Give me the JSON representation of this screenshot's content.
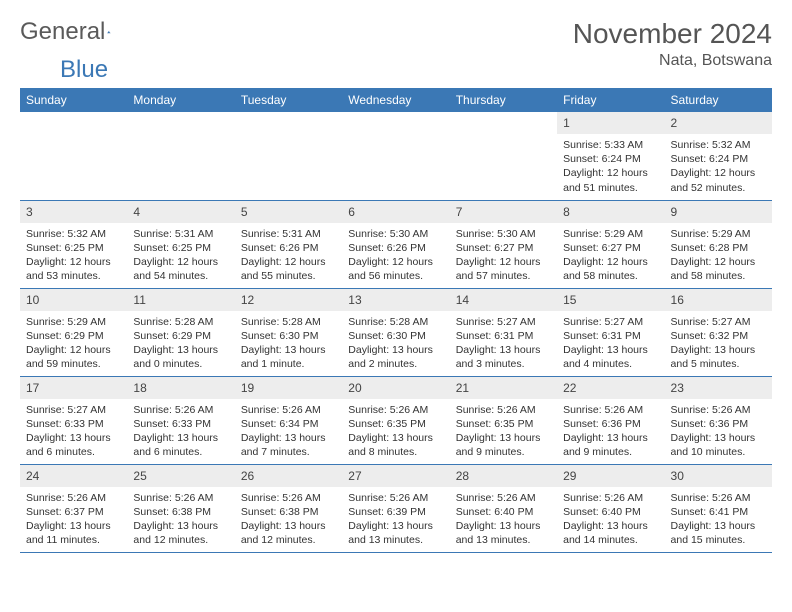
{
  "brand": {
    "text1": "General",
    "text2": "Blue",
    "color1": "#5a5a5a",
    "color2": "#3b78b5"
  },
  "title": "November 2024",
  "location": "Nata, Botswana",
  "colors": {
    "header_bg": "#3b78b5",
    "header_text": "#ffffff",
    "daynum_bg": "#ededed",
    "border": "#3b78b5",
    "body_text": "#333333"
  },
  "day_headers": [
    "Sunday",
    "Monday",
    "Tuesday",
    "Wednesday",
    "Thursday",
    "Friday",
    "Saturday"
  ],
  "grid": [
    [
      null,
      null,
      null,
      null,
      null,
      {
        "n": "1",
        "sunrise": "5:33 AM",
        "sunset": "6:24 PM",
        "daylight": "12 hours and 51 minutes."
      },
      {
        "n": "2",
        "sunrise": "5:32 AM",
        "sunset": "6:24 PM",
        "daylight": "12 hours and 52 minutes."
      }
    ],
    [
      {
        "n": "3",
        "sunrise": "5:32 AM",
        "sunset": "6:25 PM",
        "daylight": "12 hours and 53 minutes."
      },
      {
        "n": "4",
        "sunrise": "5:31 AM",
        "sunset": "6:25 PM",
        "daylight": "12 hours and 54 minutes."
      },
      {
        "n": "5",
        "sunrise": "5:31 AM",
        "sunset": "6:26 PM",
        "daylight": "12 hours and 55 minutes."
      },
      {
        "n": "6",
        "sunrise": "5:30 AM",
        "sunset": "6:26 PM",
        "daylight": "12 hours and 56 minutes."
      },
      {
        "n": "7",
        "sunrise": "5:30 AM",
        "sunset": "6:27 PM",
        "daylight": "12 hours and 57 minutes."
      },
      {
        "n": "8",
        "sunrise": "5:29 AM",
        "sunset": "6:27 PM",
        "daylight": "12 hours and 58 minutes."
      },
      {
        "n": "9",
        "sunrise": "5:29 AM",
        "sunset": "6:28 PM",
        "daylight": "12 hours and 58 minutes."
      }
    ],
    [
      {
        "n": "10",
        "sunrise": "5:29 AM",
        "sunset": "6:29 PM",
        "daylight": "12 hours and 59 minutes."
      },
      {
        "n": "11",
        "sunrise": "5:28 AM",
        "sunset": "6:29 PM",
        "daylight": "13 hours and 0 minutes."
      },
      {
        "n": "12",
        "sunrise": "5:28 AM",
        "sunset": "6:30 PM",
        "daylight": "13 hours and 1 minute."
      },
      {
        "n": "13",
        "sunrise": "5:28 AM",
        "sunset": "6:30 PM",
        "daylight": "13 hours and 2 minutes."
      },
      {
        "n": "14",
        "sunrise": "5:27 AM",
        "sunset": "6:31 PM",
        "daylight": "13 hours and 3 minutes."
      },
      {
        "n": "15",
        "sunrise": "5:27 AM",
        "sunset": "6:31 PM",
        "daylight": "13 hours and 4 minutes."
      },
      {
        "n": "16",
        "sunrise": "5:27 AM",
        "sunset": "6:32 PM",
        "daylight": "13 hours and 5 minutes."
      }
    ],
    [
      {
        "n": "17",
        "sunrise": "5:27 AM",
        "sunset": "6:33 PM",
        "daylight": "13 hours and 6 minutes."
      },
      {
        "n": "18",
        "sunrise": "5:26 AM",
        "sunset": "6:33 PM",
        "daylight": "13 hours and 6 minutes."
      },
      {
        "n": "19",
        "sunrise": "5:26 AM",
        "sunset": "6:34 PM",
        "daylight": "13 hours and 7 minutes."
      },
      {
        "n": "20",
        "sunrise": "5:26 AM",
        "sunset": "6:35 PM",
        "daylight": "13 hours and 8 minutes."
      },
      {
        "n": "21",
        "sunrise": "5:26 AM",
        "sunset": "6:35 PM",
        "daylight": "13 hours and 9 minutes."
      },
      {
        "n": "22",
        "sunrise": "5:26 AM",
        "sunset": "6:36 PM",
        "daylight": "13 hours and 9 minutes."
      },
      {
        "n": "23",
        "sunrise": "5:26 AM",
        "sunset": "6:36 PM",
        "daylight": "13 hours and 10 minutes."
      }
    ],
    [
      {
        "n": "24",
        "sunrise": "5:26 AM",
        "sunset": "6:37 PM",
        "daylight": "13 hours and 11 minutes."
      },
      {
        "n": "25",
        "sunrise": "5:26 AM",
        "sunset": "6:38 PM",
        "daylight": "13 hours and 12 minutes."
      },
      {
        "n": "26",
        "sunrise": "5:26 AM",
        "sunset": "6:38 PM",
        "daylight": "13 hours and 12 minutes."
      },
      {
        "n": "27",
        "sunrise": "5:26 AM",
        "sunset": "6:39 PM",
        "daylight": "13 hours and 13 minutes."
      },
      {
        "n": "28",
        "sunrise": "5:26 AM",
        "sunset": "6:40 PM",
        "daylight": "13 hours and 13 minutes."
      },
      {
        "n": "29",
        "sunrise": "5:26 AM",
        "sunset": "6:40 PM",
        "daylight": "13 hours and 14 minutes."
      },
      {
        "n": "30",
        "sunrise": "5:26 AM",
        "sunset": "6:41 PM",
        "daylight": "13 hours and 15 minutes."
      }
    ]
  ],
  "labels": {
    "sunrise": "Sunrise: ",
    "sunset": "Sunset: ",
    "daylight": "Daylight: "
  }
}
